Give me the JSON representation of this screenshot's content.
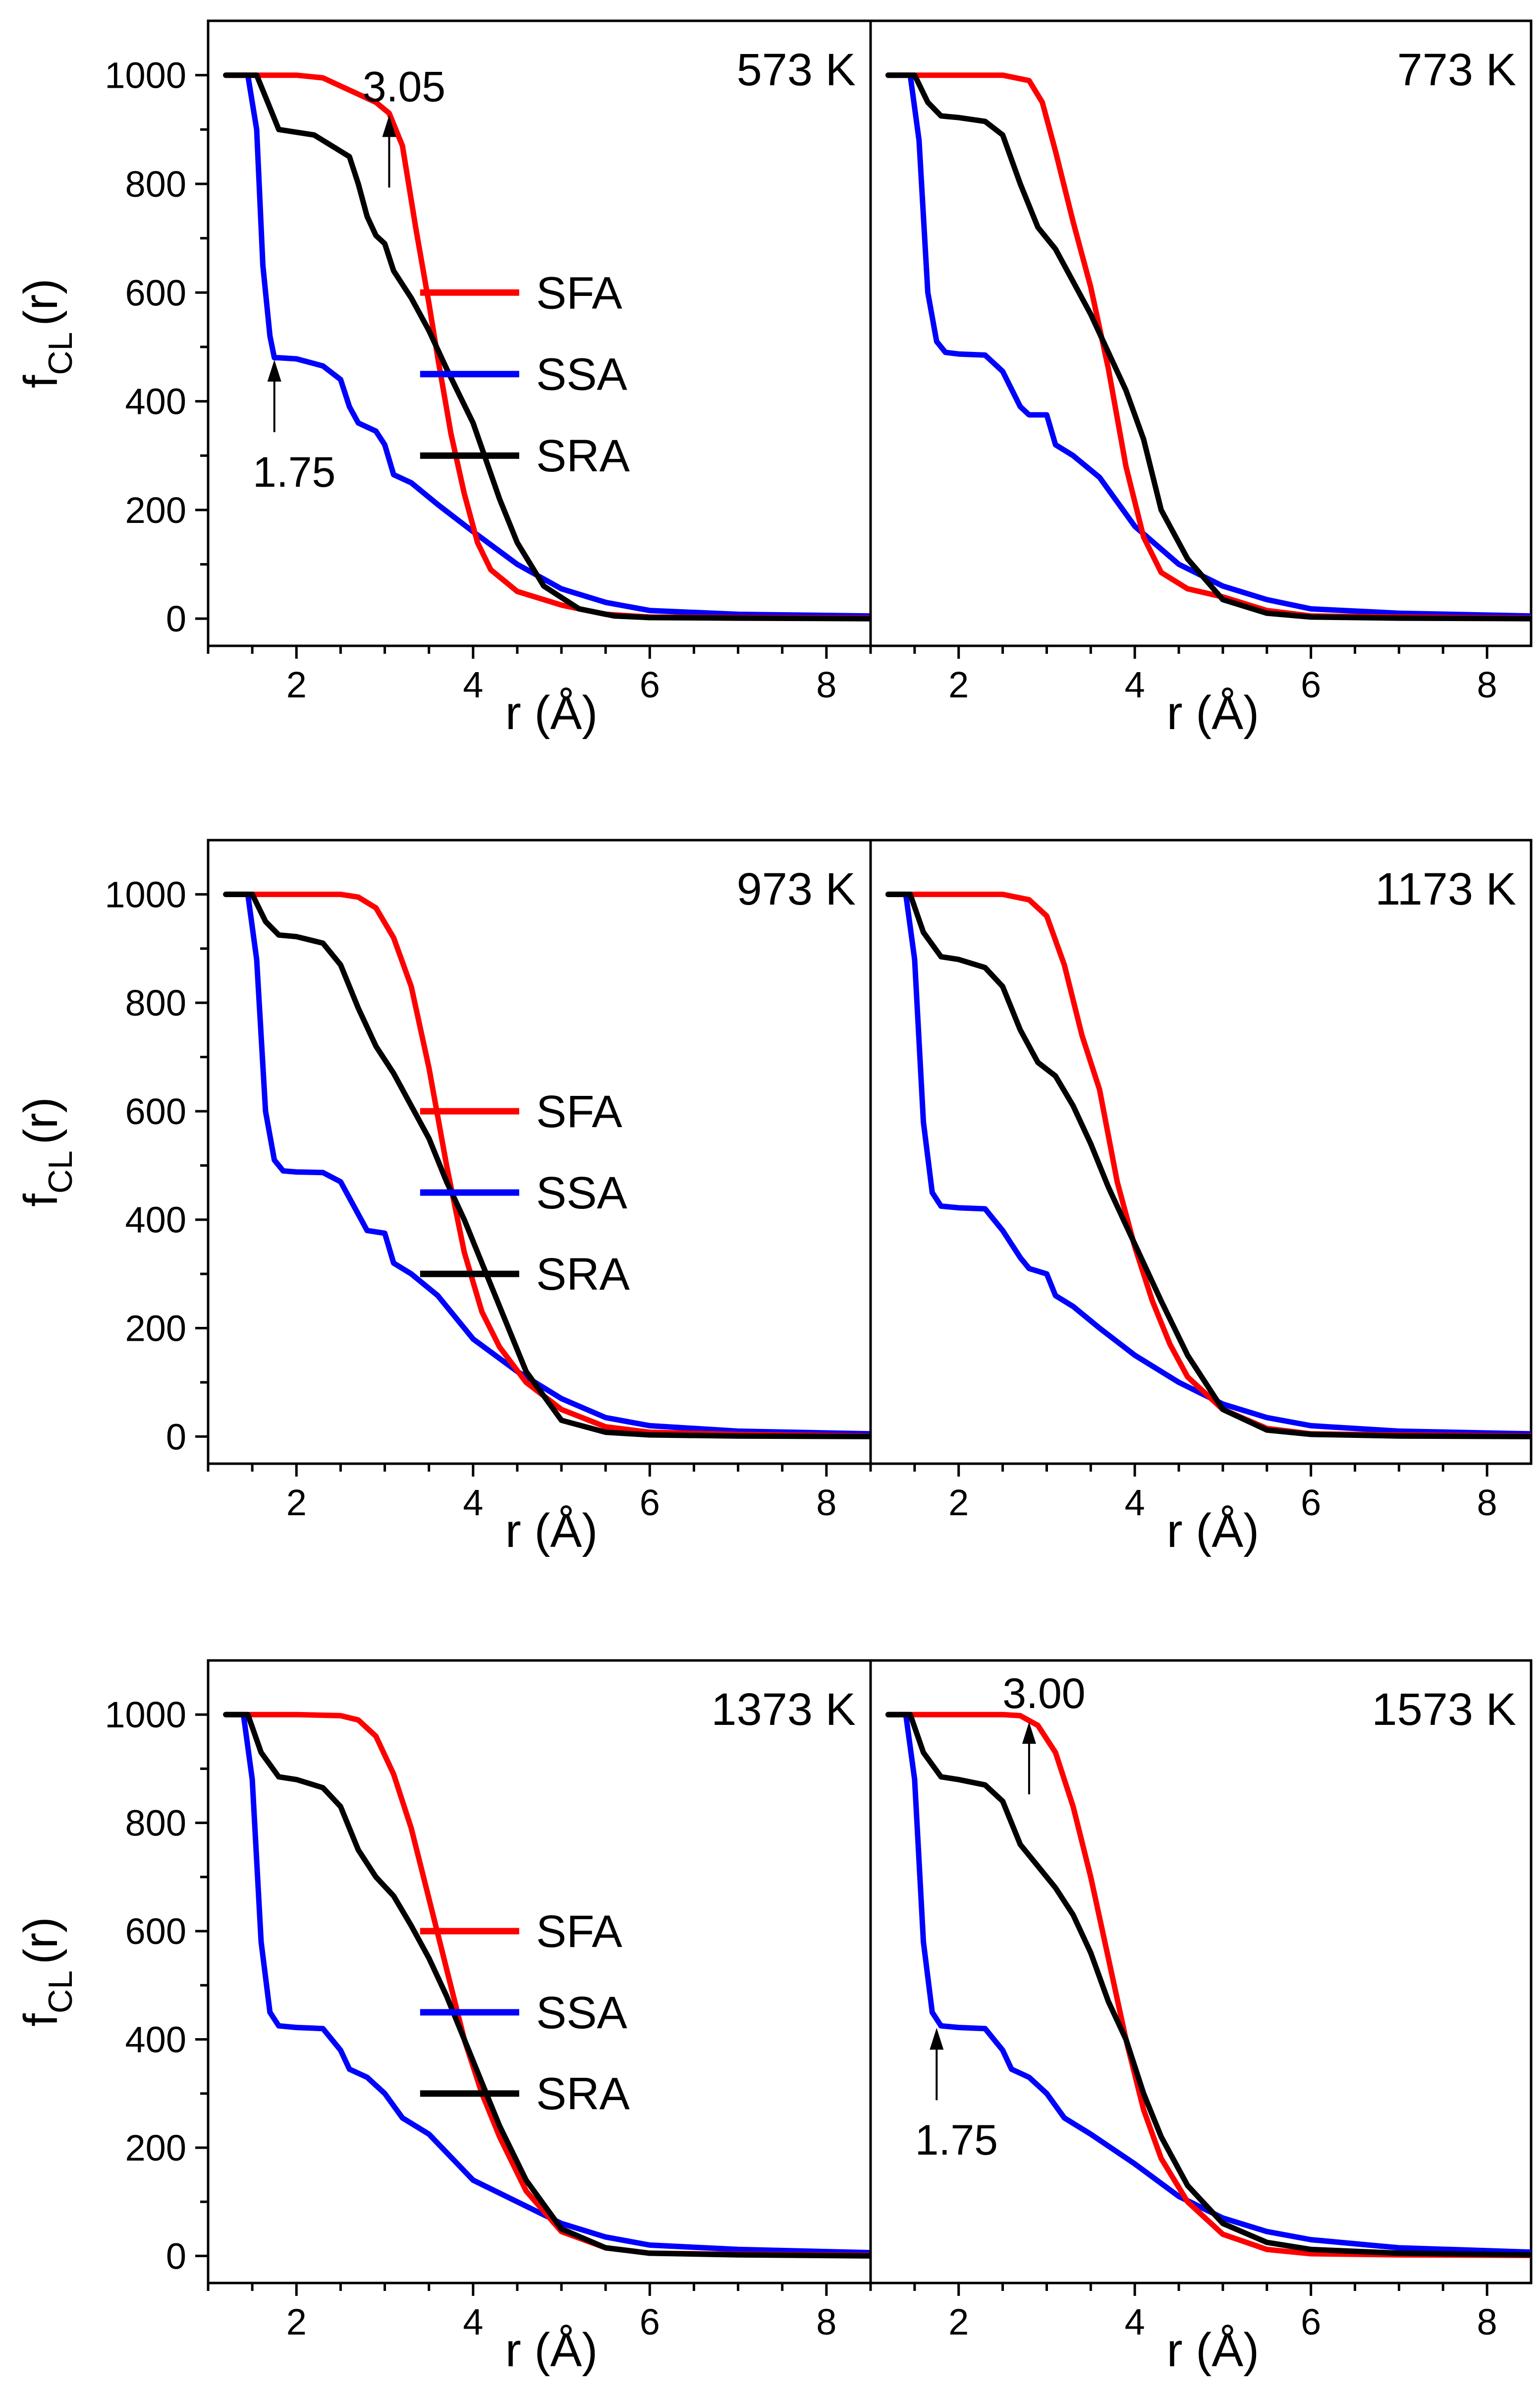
{
  "chart_data": [
    {
      "type": "line",
      "panel_label": "573 K",
      "xlabel": "r (Å)",
      "ylabel_main": "f",
      "ylabel_sub": "CL",
      "ylabel_tail": "(r)",
      "xlim": [
        1.0,
        8.5
      ],
      "ylim": [
        -50,
        1100
      ],
      "xticks": [
        "2",
        "4",
        "6",
        "8"
      ],
      "yticks": [
        "0",
        "200",
        "400",
        "600",
        "800",
        "1000"
      ],
      "legend": true,
      "legend_labels": [
        "SFA",
        "SSA",
        "SRA"
      ],
      "annotations": [
        {
          "label": "3.05",
          "x": 3.05,
          "y": 930,
          "direction": "up"
        },
        {
          "label": "1.75",
          "x": 1.75,
          "y": 480,
          "direction": "up"
        }
      ],
      "series": [
        {
          "name": "SFA",
          "color": "#ff0000",
          "x": [
            1.2,
            1.5,
            2.0,
            2.3,
            2.5,
            2.7,
            2.9,
            3.05,
            3.2,
            3.35,
            3.5,
            3.6,
            3.75,
            3.9,
            4.05,
            4.2,
            4.5,
            5.0,
            5.5,
            6.0,
            7.0,
            8.5
          ],
          "y": [
            1000,
            1000,
            1000,
            995,
            980,
            965,
            950,
            930,
            870,
            720,
            580,
            480,
            340,
            230,
            140,
            90,
            50,
            25,
            8,
            3,
            2,
            1
          ]
        },
        {
          "name": "SSA",
          "color": "#0000ff",
          "x": [
            1.2,
            1.45,
            1.55,
            1.62,
            1.7,
            1.75,
            1.8,
            2.0,
            2.3,
            2.5,
            2.6,
            2.7,
            2.9,
            3.0,
            3.1,
            3.3,
            3.6,
            4.0,
            4.5,
            5.0,
            5.5,
            6.0,
            7.0,
            8.5
          ],
          "y": [
            1000,
            1000,
            900,
            650,
            520,
            480,
            480,
            478,
            465,
            440,
            390,
            360,
            345,
            320,
            265,
            250,
            210,
            160,
            100,
            55,
            30,
            15,
            8,
            5
          ]
        },
        {
          "name": "SRA",
          "color": "#000000",
          "x": [
            1.2,
            1.55,
            1.7,
            1.8,
            2.0,
            2.2,
            2.4,
            2.6,
            2.7,
            2.8,
            2.9,
            3.0,
            3.1,
            3.3,
            3.5,
            3.7,
            4.0,
            4.3,
            4.5,
            4.8,
            5.2,
            5.6,
            6.0,
            7.0,
            8.5
          ],
          "y": [
            1000,
            1000,
            940,
            900,
            895,
            890,
            870,
            850,
            800,
            740,
            705,
            690,
            640,
            590,
            530,
            460,
            360,
            220,
            140,
            60,
            18,
            5,
            2,
            1,
            0
          ]
        }
      ]
    },
    {
      "type": "line",
      "panel_label": "773 K",
      "xlabel": "r (Å)",
      "xlim": [
        1.0,
        8.5
      ],
      "ylim": [
        -50,
        1100
      ],
      "xticks": [
        "2",
        "4",
        "6",
        "8"
      ],
      "legend": false,
      "series": [
        {
          "name": "SFA",
          "color": "#ff0000",
          "x": [
            1.2,
            1.5,
            2.0,
            2.5,
            2.8,
            2.95,
            3.1,
            3.3,
            3.5,
            3.7,
            3.9,
            4.1,
            4.3,
            4.6,
            5.0,
            5.5,
            6.0,
            7.0,
            8.5
          ],
          "y": [
            1000,
            1000,
            1000,
            1000,
            990,
            950,
            860,
            730,
            610,
            460,
            280,
            150,
            85,
            55,
            40,
            15,
            5,
            3,
            1
          ]
        },
        {
          "name": "SSA",
          "color": "#0000ff",
          "x": [
            1.2,
            1.45,
            1.55,
            1.65,
            1.75,
            1.85,
            2.0,
            2.3,
            2.5,
            2.7,
            2.8,
            3.0,
            3.1,
            3.3,
            3.6,
            4.0,
            4.5,
            5.0,
            5.5,
            6.0,
            7.0,
            8.5
          ],
          "y": [
            1000,
            1000,
            880,
            600,
            510,
            490,
            487,
            485,
            455,
            390,
            375,
            375,
            320,
            300,
            260,
            170,
            100,
            60,
            35,
            18,
            10,
            5
          ]
        },
        {
          "name": "SRA",
          "color": "#000000",
          "x": [
            1.2,
            1.5,
            1.65,
            1.8,
            2.0,
            2.3,
            2.5,
            2.7,
            2.9,
            3.1,
            3.3,
            3.5,
            3.7,
            3.9,
            4.1,
            4.3,
            4.6,
            5.0,
            5.5,
            6.0,
            7.0,
            8.5
          ],
          "y": [
            1000,
            1000,
            950,
            925,
            922,
            915,
            890,
            800,
            720,
            680,
            620,
            560,
            490,
            420,
            330,
            200,
            110,
            35,
            10,
            3,
            1,
            0
          ]
        }
      ]
    },
    {
      "type": "line",
      "panel_label": "973 K",
      "xlabel": "r (Å)",
      "ylabel_main": "f",
      "ylabel_sub": "CL",
      "ylabel_tail": "(r)",
      "xlim": [
        1.0,
        8.5
      ],
      "ylim": [
        -50,
        1100
      ],
      "xticks": [
        "2",
        "4",
        "6",
        "8"
      ],
      "yticks": [
        "0",
        "200",
        "400",
        "600",
        "800",
        "1000"
      ],
      "legend": true,
      "legend_labels": [
        "SFA",
        "SSA",
        "SRA"
      ],
      "series": [
        {
          "name": "SFA",
          "color": "#ff0000",
          "x": [
            1.2,
            1.5,
            2.0,
            2.5,
            2.7,
            2.9,
            3.1,
            3.3,
            3.5,
            3.7,
            3.9,
            4.1,
            4.3,
            4.6,
            5.0,
            5.5,
            6.0,
            7.0,
            8.5
          ],
          "y": [
            1000,
            1000,
            1000,
            1000,
            995,
            975,
            920,
            830,
            680,
            500,
            340,
            230,
            165,
            100,
            50,
            18,
            8,
            4,
            1
          ]
        },
        {
          "name": "SSA",
          "color": "#0000ff",
          "x": [
            1.2,
            1.45,
            1.55,
            1.65,
            1.75,
            1.85,
            2.0,
            2.3,
            2.5,
            2.7,
            2.8,
            3.0,
            3.1,
            3.3,
            3.6,
            4.0,
            4.5,
            5.0,
            5.5,
            6.0,
            7.0,
            8.5
          ],
          "y": [
            1000,
            1000,
            880,
            600,
            510,
            490,
            488,
            487,
            470,
            410,
            380,
            375,
            320,
            300,
            260,
            180,
            120,
            70,
            35,
            20,
            10,
            5
          ]
        },
        {
          "name": "SRA",
          "color": "#000000",
          "x": [
            1.2,
            1.5,
            1.65,
            1.8,
            2.0,
            2.3,
            2.5,
            2.7,
            2.9,
            3.1,
            3.3,
            3.5,
            3.7,
            3.9,
            4.1,
            4.3,
            4.6,
            5.0,
            5.5,
            6.0,
            7.0,
            8.5
          ],
          "y": [
            1000,
            1000,
            950,
            925,
            922,
            910,
            870,
            790,
            720,
            670,
            610,
            550,
            470,
            400,
            320,
            240,
            120,
            30,
            8,
            3,
            1,
            0
          ]
        }
      ]
    },
    {
      "type": "line",
      "panel_label": "1173 K",
      "xlabel": "r (Å)",
      "xlim": [
        1.0,
        8.5
      ],
      "ylim": [
        -50,
        1100
      ],
      "xticks": [
        "2",
        "4",
        "6",
        "8"
      ],
      "legend": false,
      "series": [
        {
          "name": "SFA",
          "color": "#ff0000",
          "x": [
            1.2,
            1.5,
            2.0,
            2.5,
            2.8,
            3.0,
            3.2,
            3.4,
            3.6,
            3.8,
            4.0,
            4.2,
            4.4,
            4.6,
            5.0,
            5.5,
            6.0,
            7.0,
            8.5
          ],
          "y": [
            1000,
            1000,
            1000,
            1000,
            990,
            960,
            870,
            740,
            640,
            470,
            350,
            250,
            170,
            110,
            50,
            15,
            5,
            3,
            1
          ]
        },
        {
          "name": "SSA",
          "color": "#0000ff",
          "x": [
            1.2,
            1.4,
            1.5,
            1.6,
            1.7,
            1.8,
            2.0,
            2.3,
            2.5,
            2.7,
            2.8,
            3.0,
            3.1,
            3.3,
            3.6,
            4.0,
            4.5,
            5.0,
            5.5,
            6.0,
            7.0,
            8.5
          ],
          "y": [
            1000,
            1000,
            880,
            580,
            450,
            425,
            422,
            420,
            380,
            330,
            310,
            300,
            260,
            240,
            200,
            150,
            100,
            60,
            35,
            20,
            10,
            5
          ]
        },
        {
          "name": "SRA",
          "color": "#000000",
          "x": [
            1.2,
            1.45,
            1.6,
            1.8,
            2.0,
            2.3,
            2.5,
            2.7,
            2.9,
            3.1,
            3.3,
            3.5,
            3.7,
            3.9,
            4.1,
            4.3,
            4.6,
            5.0,
            5.5,
            6.0,
            7.0,
            8.5
          ],
          "y": [
            1000,
            1000,
            930,
            885,
            880,
            865,
            830,
            750,
            690,
            665,
            610,
            540,
            460,
            390,
            320,
            250,
            150,
            50,
            12,
            4,
            1,
            0
          ]
        }
      ]
    },
    {
      "type": "line",
      "panel_label": "1373 K",
      "xlabel": "r (Å)",
      "ylabel_main": "f",
      "ylabel_sub": "CL",
      "ylabel_tail": "(r)",
      "xlim": [
        1.0,
        8.5
      ],
      "ylim": [
        -50,
        1100
      ],
      "xticks": [
        "2",
        "4",
        "6",
        "8"
      ],
      "yticks": [
        "0",
        "200",
        "400",
        "600",
        "800",
        "1000"
      ],
      "legend": true,
      "legend_labels": [
        "SFA",
        "SSA",
        "SRA"
      ],
      "series": [
        {
          "name": "SFA",
          "color": "#ff0000",
          "x": [
            1.2,
            1.5,
            2.0,
            2.5,
            2.7,
            2.9,
            3.1,
            3.3,
            3.5,
            3.7,
            3.9,
            4.1,
            4.3,
            4.6,
            5.0,
            5.5,
            6.0,
            7.0,
            8.5
          ],
          "y": [
            1000,
            1000,
            1000,
            998,
            990,
            960,
            890,
            790,
            660,
            530,
            400,
            300,
            220,
            120,
            45,
            15,
            5,
            3,
            1
          ]
        },
        {
          "name": "SSA",
          "color": "#0000ff",
          "x": [
            1.2,
            1.4,
            1.5,
            1.6,
            1.7,
            1.8,
            2.0,
            2.3,
            2.5,
            2.6,
            2.8,
            3.0,
            3.2,
            3.5,
            4.0,
            4.5,
            5.0,
            5.5,
            6.0,
            7.0,
            8.5
          ],
          "y": [
            1000,
            1000,
            880,
            580,
            450,
            425,
            422,
            420,
            380,
            345,
            330,
            300,
            255,
            225,
            140,
            100,
            60,
            35,
            20,
            12,
            6
          ]
        },
        {
          "name": "SRA",
          "color": "#000000",
          "x": [
            1.2,
            1.45,
            1.6,
            1.8,
            2.0,
            2.3,
            2.5,
            2.7,
            2.9,
            3.1,
            3.3,
            3.5,
            3.7,
            3.9,
            4.1,
            4.3,
            4.6,
            5.0,
            5.5,
            6.0,
            7.0,
            8.5
          ],
          "y": [
            1000,
            1000,
            930,
            885,
            880,
            865,
            830,
            750,
            700,
            665,
            610,
            550,
            480,
            400,
            320,
            240,
            140,
            50,
            15,
            5,
            2,
            0
          ]
        }
      ]
    },
    {
      "type": "line",
      "panel_label": "1573 K",
      "xlabel": "r (Å)",
      "xlim": [
        1.0,
        8.5
      ],
      "ylim": [
        -50,
        1100
      ],
      "xticks": [
        "2",
        "4",
        "6",
        "8"
      ],
      "legend": false,
      "annotations": [
        {
          "label": "3.00",
          "x": 2.8,
          "y": 990,
          "direction": "up"
        },
        {
          "label": "1.75",
          "x": 1.75,
          "y": 425,
          "direction": "up"
        }
      ],
      "series": [
        {
          "name": "SFA",
          "color": "#ff0000",
          "x": [
            1.2,
            1.5,
            2.0,
            2.5,
            2.7,
            2.9,
            3.1,
            3.3,
            3.5,
            3.7,
            3.9,
            4.1,
            4.3,
            4.6,
            5.0,
            5.5,
            6.0,
            7.0,
            8.5
          ],
          "y": [
            1000,
            1000,
            1000,
            1000,
            998,
            980,
            930,
            830,
            700,
            550,
            400,
            270,
            180,
            100,
            40,
            12,
            4,
            2,
            1
          ]
        },
        {
          "name": "SSA",
          "color": "#0000ff",
          "x": [
            1.2,
            1.4,
            1.5,
            1.6,
            1.7,
            1.8,
            2.0,
            2.3,
            2.5,
            2.6,
            2.8,
            3.0,
            3.2,
            3.5,
            4.0,
            4.5,
            5.0,
            5.5,
            6.0,
            7.0,
            8.5
          ],
          "y": [
            1000,
            1000,
            880,
            580,
            450,
            425,
            422,
            420,
            380,
            345,
            330,
            300,
            255,
            225,
            170,
            110,
            70,
            45,
            30,
            15,
            7
          ]
        },
        {
          "name": "SRA",
          "color": "#000000",
          "x": [
            1.2,
            1.45,
            1.6,
            1.8,
            2.0,
            2.3,
            2.5,
            2.7,
            2.9,
            3.1,
            3.3,
            3.5,
            3.7,
            3.9,
            4.1,
            4.3,
            4.6,
            5.0,
            5.5,
            6.0,
            7.0,
            8.5
          ],
          "y": [
            1000,
            1000,
            930,
            885,
            880,
            870,
            840,
            760,
            720,
            680,
            630,
            560,
            470,
            400,
            300,
            220,
            130,
            60,
            25,
            12,
            5,
            2
          ]
        }
      ]
    }
  ]
}
